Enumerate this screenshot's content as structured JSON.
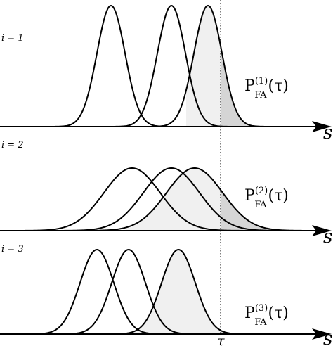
{
  "threshold_label": "τ",
  "axis_variable": "s",
  "panels": [
    {
      "label": "i = 1",
      "prob_label": {
        "base": "P",
        "sub": "FA",
        "sup": "(1)",
        "arg": "(τ)"
      },
      "components": [
        {
          "mean": 158,
          "sd": 20
        },
        {
          "mean": 244,
          "sd": 20
        },
        {
          "mean": 296,
          "sd": 20
        }
      ]
    },
    {
      "label": "i = 2",
      "prob_label": {
        "base": "P",
        "sub": "FA",
        "sup": "(2)",
        "arg": "(τ)"
      },
      "components": [
        {
          "mean": 188,
          "sd": 40
        },
        {
          "mean": 244,
          "sd": 40
        },
        {
          "mean": 277,
          "sd": 40
        }
      ]
    },
    {
      "label": "i = 3",
      "prob_label": {
        "base": "P",
        "sub": "FA",
        "sup": "(3)",
        "arg": "(τ)"
      },
      "components": [
        {
          "mean": 138,
          "sd": 24
        },
        {
          "mean": 183,
          "sd": 24
        },
        {
          "mean": 254,
          "sd": 24
        }
      ]
    }
  ],
  "colors": {
    "curve": "#000000",
    "tail_light": "#f0f0f0",
    "tail_dark": "#d5d5d5"
  }
}
